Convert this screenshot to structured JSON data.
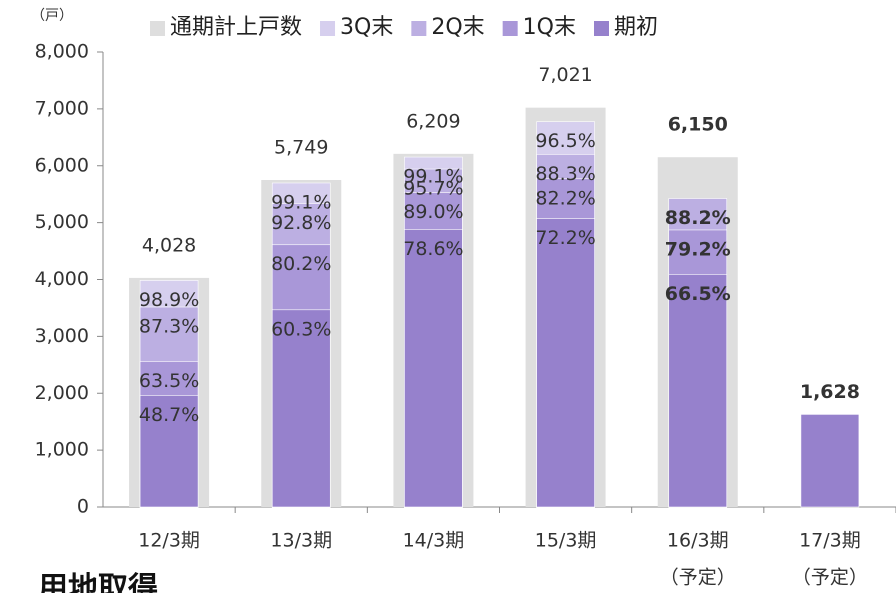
{
  "chart_data": {
    "type": "overlay_bar",
    "axis_unit": "（戸）",
    "caption": "用地取得",
    "categories": [
      "12/3期",
      "13/3期",
      "14/3期",
      "15/3期",
      "16/3期",
      "17/3期"
    ],
    "subcategories": [
      null,
      null,
      null,
      null,
      "（予定）",
      "（予定）"
    ],
    "series": [
      {
        "name": "通期計上戸数",
        "color": "#dedede",
        "wide": true,
        "values": [
          4028,
          5749,
          6209,
          7021,
          6150,
          null
        ],
        "value_labels": [
          "4,028",
          "5,749",
          "6,209",
          "7,021",
          "6,150",
          null
        ]
      },
      {
        "name": "3Q末",
        "color": "#d6cfee",
        "values": [
          3984,
          5697,
          6153,
          6775,
          null,
          null
        ],
        "annotations": [
          "98.9%",
          "99.1%",
          "99.1%",
          "96.5%",
          null,
          null
        ]
      },
      {
        "name": "2Q末",
        "color": "#bcafe2",
        "values": [
          3516,
          5335,
          5942,
          6200,
          5424,
          null
        ],
        "annotations": [
          "87.3%",
          "92.8%",
          "95.7%",
          "88.3%",
          "88.2%",
          null
        ]
      },
      {
        "name": "1Q末",
        "color": "#a997d8",
        "values": [
          2558,
          4611,
          5526,
          5771,
          4871,
          null
        ],
        "annotations": [
          "63.5%",
          "80.2%",
          "89.0%",
          "82.2%",
          "79.2%",
          null
        ]
      },
      {
        "name": "期初",
        "color": "#9681cc",
        "values": [
          1962,
          3467,
          4880,
          5069,
          4090,
          1628
        ],
        "value_labels": [
          null,
          null,
          null,
          null,
          null,
          "1,628"
        ],
        "annotations": [
          "48.7%",
          "60.3%",
          "78.6%",
          "72.2%",
          "66.5%",
          null
        ]
      }
    ],
    "ylim": [
      0,
      8000
    ],
    "yticks": [
      0,
      {
        "value": 1000,
        "label": "1,000"
      },
      {
        "value": 2000,
        "label": "2,000"
      },
      {
        "value": 3000,
        "label": "3,000"
      },
      {
        "value": 4000,
        "label": "4,000"
      },
      {
        "value": 5000,
        "label": "5,000"
      },
      {
        "value": 6000,
        "label": "6,000"
      },
      {
        "value": 7000,
        "label": "7,000"
      },
      {
        "value": 8000,
        "label": "8,000"
      }
    ],
    "legend": "top"
  }
}
